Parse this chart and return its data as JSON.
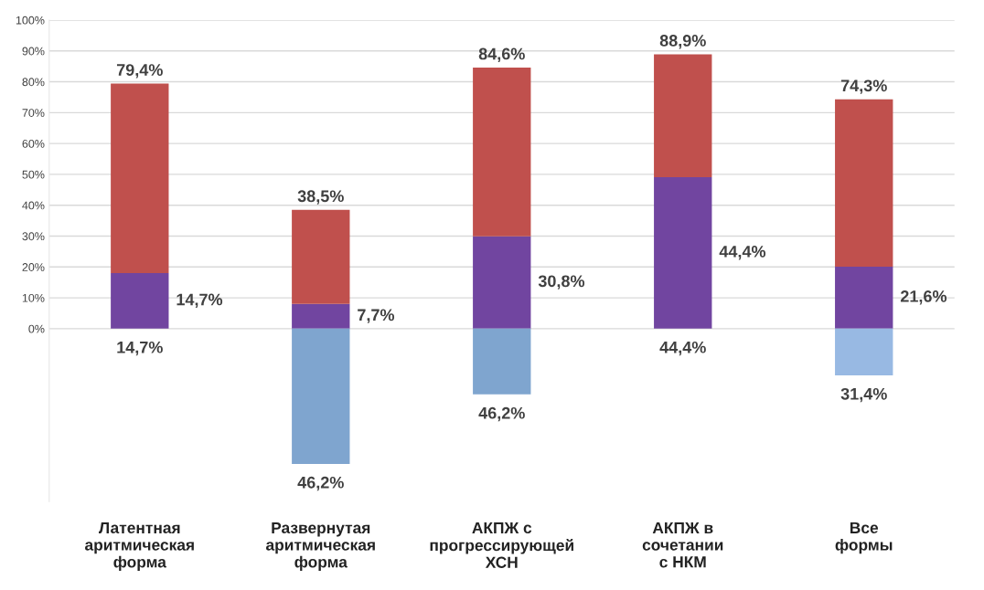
{
  "chart_data": {
    "type": "bar",
    "stacked": true,
    "categories": [
      "Латентная\nаритмическая\nформа",
      "Развернутая\nаритмическая\nформа",
      "АКПЖ с\nпрогрессирующей\nХСН",
      "АКПЖ в\nсочетании\nс НКМ",
      "Все\nформы"
    ],
    "series": [
      {
        "color": "#7145a0",
        "values": [
          18.0,
          8.0,
          29.9,
          49.1,
          20.1
        ]
      },
      {
        "color": "#c0504d",
        "values": [
          61.4,
          30.5,
          54.7,
          39.8,
          54.2
        ]
      },
      {
        "color": "#7fa5cf",
        "colors": [
          "#7fa5cf",
          "#7fa5cf",
          "#7fa5cf",
          "#7fa5cf",
          "#98b9e3"
        ],
        "values": [
          0,
          -43.8,
          -21.3,
          0,
          -15.1
        ]
      }
    ],
    "annotations": [
      "79,4%",
      "38,5%",
      "84,6%",
      "88,9%",
      "74,3%",
      "14,7%",
      "7,7%",
      "30,8%",
      "44,4%",
      "21,6%",
      "14,7%",
      "46,2%",
      "46,2%",
      "44,4%",
      "31,4%"
    ],
    "ylim": [
      -56,
      100
    ],
    "yticks": [
      {
        "value": 0,
        "label": "0%"
      },
      {
        "value": 10,
        "label": "10%"
      },
      {
        "value": 20,
        "label": "20%"
      },
      {
        "value": 30,
        "label": "30%"
      },
      {
        "value": 40,
        "label": "40%"
      },
      {
        "value": 50,
        "label": "50%"
      },
      {
        "value": 60,
        "label": "60%"
      },
      {
        "value": 70,
        "label": "70%"
      },
      {
        "value": 80,
        "label": "80%"
      },
      {
        "value": 90,
        "label": "90%"
      },
      {
        "value": 100,
        "label": "100%"
      }
    ],
    "grid": "y"
  }
}
